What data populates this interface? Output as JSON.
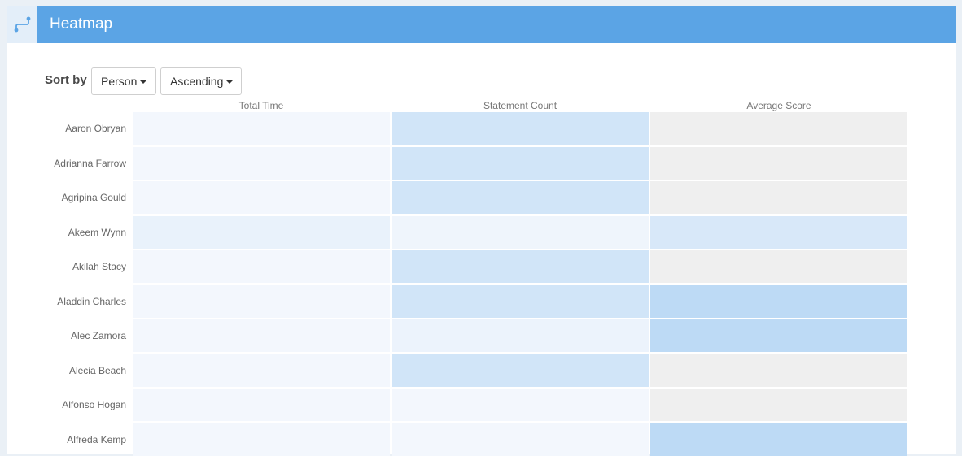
{
  "header": {
    "title": "Heatmap",
    "icon": "route-icon"
  },
  "sort": {
    "label": "Sort by",
    "field_value": "Person",
    "order_value": "Ascending"
  },
  "colors": {
    "header": "#5ba4e5",
    "null_cell": "#efefef",
    "scale_low": "#f6f9fd",
    "scale_high": "#b3d4f3"
  },
  "chart_data": {
    "type": "heatmap",
    "columns": [
      "Total Time",
      "Statement Count",
      "Average Score"
    ],
    "rows": [
      "Aaron Obryan",
      "Adrianna Farrow",
      "Agripina Gould",
      "Akeem Wynn",
      "Akilah Stacy",
      "Aladdin Charles",
      "Alec Zamora",
      "Alecia Beach",
      "Alfonso Hogan",
      "Alfreda Kemp"
    ],
    "intensity": [
      [
        0.05,
        0.55,
        null
      ],
      [
        0.05,
        0.55,
        null
      ],
      [
        0.05,
        0.55,
        null
      ],
      [
        0.2,
        0.1,
        0.45
      ],
      [
        0.05,
        0.55,
        null
      ],
      [
        0.05,
        0.55,
        0.85
      ],
      [
        0.05,
        0.15,
        0.85
      ],
      [
        0.05,
        0.55,
        null
      ],
      [
        0.05,
        0.05,
        null
      ],
      [
        0.05,
        0.05,
        0.85
      ]
    ]
  }
}
